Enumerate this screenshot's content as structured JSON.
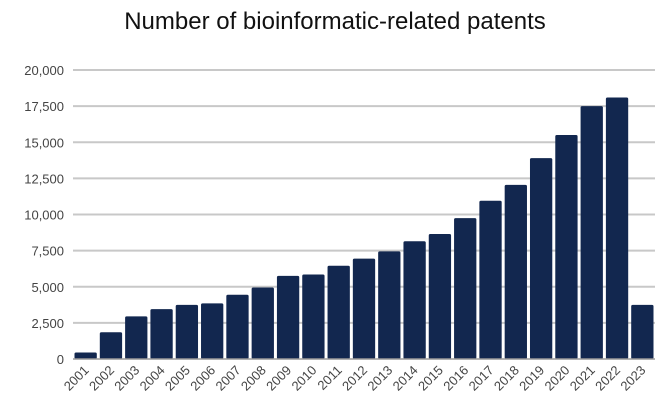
{
  "chart_data": {
    "type": "bar",
    "title": "Number of bioinformatic-related patents",
    "xlabel": "",
    "ylabel": "",
    "categories": [
      "2001",
      "2002",
      "2003",
      "2004",
      "2005",
      "2006",
      "2007",
      "2008",
      "2009",
      "2010",
      "2011",
      "2012",
      "2013",
      "2014",
      "2015",
      "2016",
      "2017",
      "2018",
      "2019",
      "2020",
      "2021",
      "2022",
      "2023"
    ],
    "values": [
      450,
      1850,
      2950,
      3450,
      3750,
      3850,
      4450,
      4950,
      5750,
      5850,
      6450,
      6950,
      7450,
      8150,
      8650,
      9750,
      10950,
      12050,
      13900,
      15500,
      17500,
      18100,
      3750
    ],
    "ylim": [
      0,
      20000
    ],
    "yticks": [
      0,
      2500,
      5000,
      7500,
      10000,
      12500,
      15000,
      17500,
      20000
    ],
    "ytick_labels": [
      "0",
      "2,500",
      "5,000",
      "7,500",
      "10,000",
      "12,500",
      "15,000",
      "17,500",
      "20,000"
    ],
    "grid": true,
    "legend": "none",
    "bar_color": "#12274f",
    "grid_color": "#c8c8c8"
  }
}
